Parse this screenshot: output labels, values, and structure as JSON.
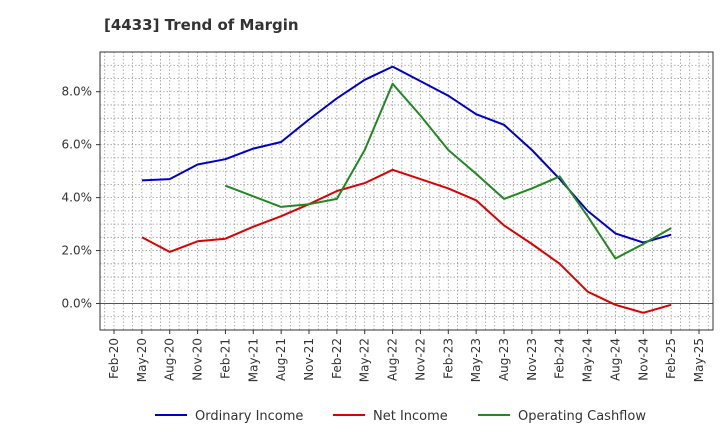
{
  "chart_data": {
    "type": "line",
    "title": "[4433]  Trend of Margin",
    "xlabel": "",
    "ylabel": "",
    "x_ticks": [
      "Feb-20",
      "May-20",
      "Aug-20",
      "Nov-20",
      "Feb-21",
      "May-21",
      "Aug-21",
      "Nov-21",
      "Feb-22",
      "May-22",
      "Aug-22",
      "Nov-22",
      "Feb-23",
      "May-23",
      "Aug-23",
      "Nov-23",
      "Feb-24",
      "May-24",
      "Aug-24",
      "Nov-24",
      "Feb-25",
      "May-25"
    ],
    "y_ticks": [
      {
        "value": 0,
        "label": "0.0%"
      },
      {
        "value": 2,
        "label": "2.0%"
      },
      {
        "value": 4,
        "label": "4.0%"
      },
      {
        "value": 6,
        "label": "6.0%"
      },
      {
        "value": 8,
        "label": "8.0%"
      }
    ],
    "ylim": [
      -1.0,
      9.5
    ],
    "grid": true,
    "legend_position": "bottom",
    "series": [
      {
        "name": "Ordinary Income",
        "color": "#0000cc",
        "values": [
          null,
          4.65,
          4.7,
          5.25,
          5.45,
          5.85,
          6.1,
          6.95,
          7.75,
          8.45,
          8.95,
          8.4,
          7.85,
          7.15,
          6.75,
          5.8,
          4.7,
          3.5,
          2.65,
          2.3,
          2.6,
          null
        ]
      },
      {
        "name": "Net Income",
        "color": "#dd0000",
        "values": [
          null,
          2.5,
          1.95,
          2.35,
          2.45,
          2.9,
          3.3,
          3.75,
          4.25,
          4.55,
          5.05,
          4.7,
          4.35,
          3.9,
          2.95,
          2.25,
          1.5,
          0.45,
          -0.05,
          -0.35,
          -0.05,
          null
        ]
      },
      {
        "name": "Operating Cashflow",
        "color": "#228822",
        "values": [
          null,
          null,
          null,
          null,
          4.45,
          4.05,
          3.65,
          3.75,
          3.95,
          5.8,
          8.3,
          7.1,
          5.8,
          4.9,
          3.95,
          4.35,
          4.8,
          3.3,
          1.7,
          2.25,
          2.85,
          null
        ]
      }
    ]
  }
}
